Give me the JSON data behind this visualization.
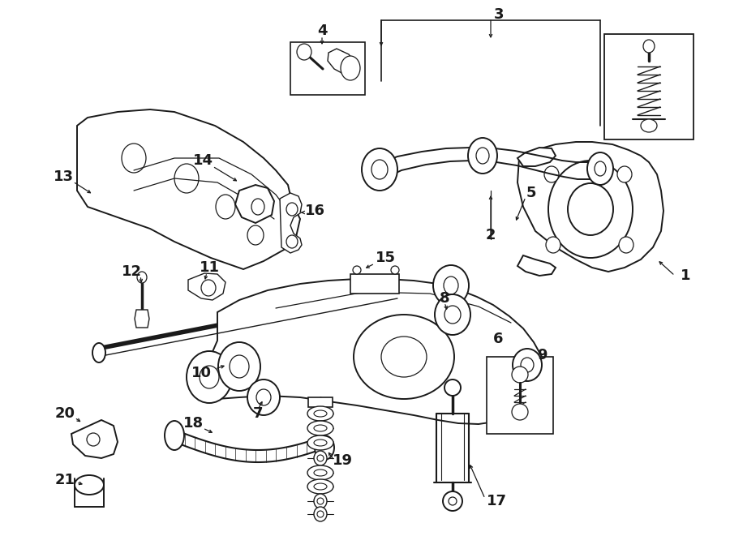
{
  "bg_color": "#ffffff",
  "line_color": "#1a1a1a",
  "figsize": [
    9.0,
    6.61
  ],
  "dpi": 100,
  "lw_main": 1.4,
  "lw_thin": 0.9,
  "lw_thick": 2.2
}
